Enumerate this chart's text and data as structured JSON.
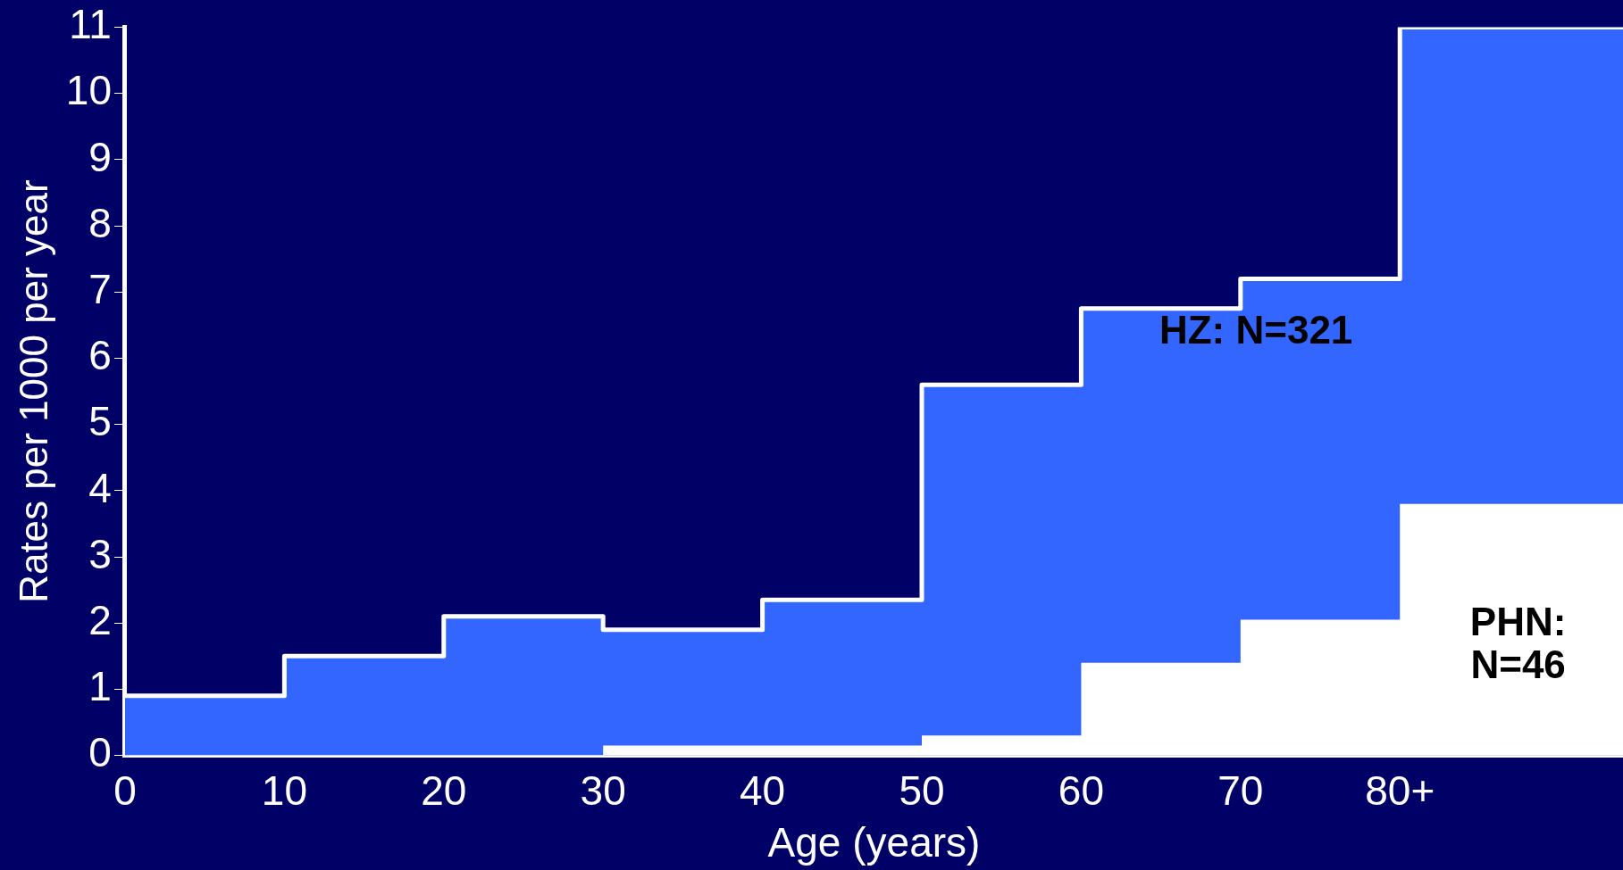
{
  "chart_data": {
    "type": "area",
    "xlabel": "Age (years)",
    "ylabel": "Rates per 1000 per year",
    "x": [
      0,
      10,
      20,
      30,
      40,
      50,
      60,
      70,
      80,
      94
    ],
    "series": [
      {
        "color": "#3366ff",
        "values": [
          0.9,
          1.5,
          2.1,
          1.9,
          2.35,
          5.6,
          6.75,
          7.2,
          11,
          11
        ]
      },
      {
        "color": "#ffffff",
        "values": [
          0,
          0,
          0,
          0.15,
          0.15,
          0.3,
          1.4,
          2.05,
          3.8,
          3.8
        ]
      },
      {
        "type": "step",
        "color": "#ffffff",
        "values": [
          0.9,
          1.5,
          2.1,
          1.9,
          2.35,
          5.6,
          6.75,
          7.2,
          11,
          11
        ]
      }
    ],
    "xlim": [
      0,
      94
    ],
    "xticks": [
      0,
      10,
      20,
      30,
      40,
      50,
      60,
      70,
      {
        "value": 80,
        "label": "80+"
      }
    ],
    "ylim": [
      0,
      11
    ],
    "yticks": [
      0,
      1,
      2,
      3,
      4,
      5,
      6,
      7,
      8,
      9,
      10,
      11
    ],
    "grid": false,
    "legend": false,
    "marker": "none",
    "line_style": "solid",
    "annotations": [
      "HZ: N=321",
      "PHN: N=46"
    ]
  }
}
